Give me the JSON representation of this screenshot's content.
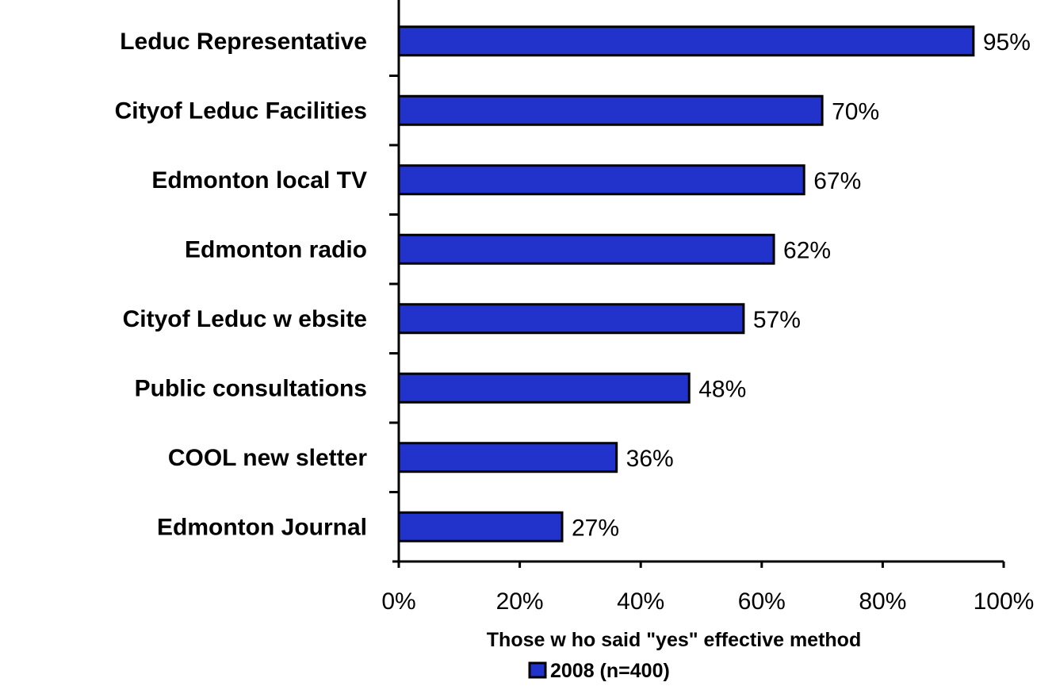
{
  "chart_data": {
    "type": "bar",
    "orientation": "horizontal",
    "categories": [
      "Leduc Representative",
      "Cityof Leduc Facilities",
      "Edmonton local TV",
      "Edmonton radio",
      "Cityof Leduc w ebsite",
      "Public consultations",
      "COOL new sletter",
      "Edmonton Journal"
    ],
    "series": [
      {
        "name": "2008 (n=400)",
        "values": [
          95,
          70,
          67,
          62,
          57,
          48,
          36,
          27
        ],
        "labels": [
          "95%",
          "70%",
          "67%",
          "62%",
          "57%",
          "48%",
          "36%",
          "27%"
        ],
        "color": "#2233cc"
      }
    ],
    "xlabel": "Those w ho said \"yes\" effective method",
    "xlim": [
      0,
      100
    ],
    "xticks": [
      "0%",
      "20%",
      "40%",
      "60%",
      "80%",
      "100%"
    ],
    "legend_position": "bottom",
    "grid": false
  }
}
